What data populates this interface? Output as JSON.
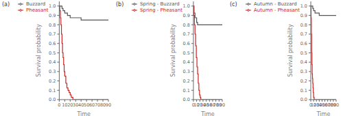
{
  "chart_data": [
    {
      "type": "step",
      "title": "(a)",
      "x_label": "Time",
      "y_label": "Survival probability",
      "xlim": [
        0,
        90
      ],
      "ylim": [
        0,
        1.05
      ],
      "xticks": [
        0,
        10,
        20,
        30,
        40,
        50,
        60,
        70,
        80,
        90
      ],
      "yticks": [
        {
          "value": 0,
          "label": "0.0"
        },
        0.1,
        0.2,
        0.3,
        0.4,
        0.5,
        0.6,
        0.7,
        0.8,
        0.9,
        {
          "value": 1,
          "label": "1.0"
        }
      ],
      "legend": "top",
      "series": [
        {
          "name": "Buzzard",
          "color": "#555555",
          "x": [
            0,
            1,
            3,
            5,
            7,
            10,
            15,
            20,
            30,
            40,
            90
          ],
          "values": [
            1.0,
            1.0,
            1.0,
            0.975,
            0.95,
            0.925,
            0.9,
            0.875,
            0.875,
            0.85,
            0.85
          ]
        },
        {
          "name": "Pheasant",
          "color": "#cc2222",
          "x": [
            0,
            1,
            2,
            3,
            4,
            5,
            6,
            7,
            8,
            9,
            10,
            12,
            14,
            16,
            18,
            20,
            22,
            25,
            90
          ],
          "values": [
            1.0,
            0.95,
            0.875,
            0.8,
            0.7,
            0.6,
            0.5,
            0.45,
            0.375,
            0.3,
            0.25,
            0.175,
            0.125,
            0.1,
            0.075,
            0.05,
            0.025,
            0.0,
            0.0
          ]
        }
      ]
    },
    {
      "type": "step",
      "title": "(b)",
      "x_label": "Time",
      "y_label": "Survival probability",
      "xlim": [
        0,
        90
      ],
      "ylim": [
        0,
        1.05
      ],
      "xticks": [
        0,
        10,
        20,
        30,
        40,
        50,
        60,
        70,
        80,
        90
      ],
      "yticks": [
        {
          "value": 0,
          "label": "0.0"
        },
        0.1,
        0.2,
        0.3,
        0.4,
        0.5,
        0.6,
        0.7,
        0.8,
        0.9,
        {
          "value": 1,
          "label": "1.0"
        }
      ],
      "legend": "top",
      "series": [
        {
          "name": "Spring - Buzzard",
          "color": "#555555",
          "x": [
            0,
            2,
            5,
            10,
            13,
            90
          ],
          "values": [
            1.0,
            0.925,
            0.875,
            0.825,
            0.8,
            0.8
          ]
        },
        {
          "name": "Spring - Pheasant",
          "color": "#cc2222",
          "x": [
            0,
            1,
            3,
            5,
            7,
            9,
            11,
            13,
            15,
            17,
            19,
            21,
            23,
            90
          ],
          "values": [
            1.0,
            0.9,
            0.8,
            0.7,
            0.575,
            0.45,
            0.35,
            0.275,
            0.175,
            0.1,
            0.05,
            0.025,
            0.0,
            0.0
          ]
        }
      ]
    },
    {
      "type": "step",
      "title": "(c)",
      "x_label": "Time",
      "y_label": "Survival probability",
      "xlim": [
        0,
        90
      ],
      "ylim": [
        0,
        1.05
      ],
      "xticks": [
        0,
        10,
        20,
        30,
        40,
        50,
        60,
        70,
        80,
        90
      ],
      "yticks": [
        {
          "value": 0,
          "label": "0.0"
        },
        0.1,
        0.2,
        0.3,
        0.4,
        0.5,
        0.6,
        0.7,
        0.8,
        0.9,
        {
          "value": 1,
          "label": "1.0"
        }
      ],
      "legend": "top",
      "series": [
        {
          "name": "Autumn - Buzzard",
          "color": "#555555",
          "x": [
            0,
            3,
            7,
            10,
            15,
            30,
            40,
            90
          ],
          "values": [
            1.0,
            1.0,
            0.975,
            0.95,
            0.925,
            0.9,
            0.9,
            0.9
          ]
        },
        {
          "name": "Autumn - Pheasant",
          "color": "#cc2222",
          "x": [
            0,
            1,
            2,
            3,
            4,
            5,
            6,
            7,
            8,
            9,
            10,
            12,
            90
          ],
          "values": [
            1.0,
            0.875,
            0.7,
            0.5,
            0.375,
            0.275,
            0.225,
            0.175,
            0.125,
            0.075,
            0.025,
            0.0,
            0.0
          ]
        }
      ]
    }
  ]
}
